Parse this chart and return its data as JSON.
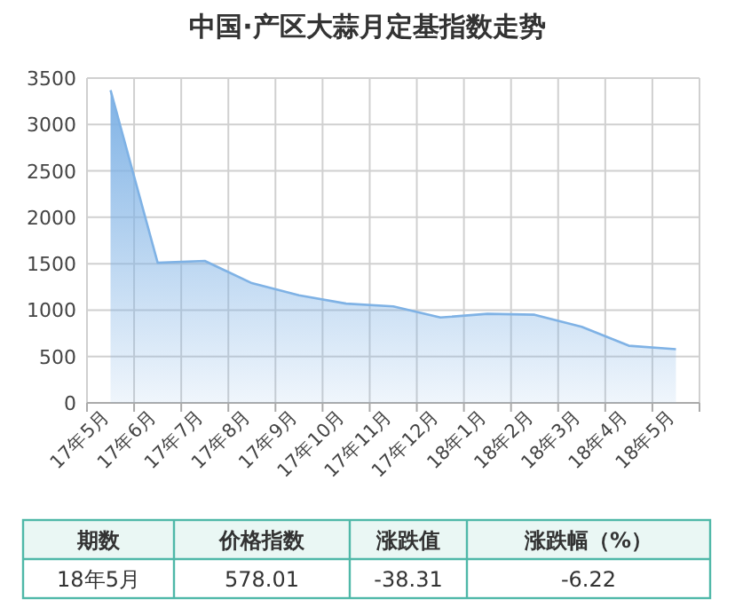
{
  "chart_data": {
    "type": "area",
    "title": "中国·产区大蒜月定基指数走势",
    "categories": [
      "17年5月",
      "17年6月",
      "17年7月",
      "17年8月",
      "17年9月",
      "17年10月",
      "17年11月",
      "17年12月",
      "18年1月",
      "18年2月",
      "18年3月",
      "18年4月",
      "18年5月"
    ],
    "series": [
      {
        "color": "#7fb2e5",
        "values": [
          3370,
          1510,
          1530,
          1290,
          1160,
          1070,
          1040,
          920,
          960,
          950,
          820,
          616,
          578.01
        ]
      }
    ],
    "ylim": [
      0,
      3500
    ],
    "yticks": [
      0,
      500,
      1000,
      1500,
      2000,
      2500,
      3000,
      3500
    ],
    "grid": true,
    "annotations": [
      "期数",
      "价格指数",
      "涨跌值",
      "涨跌幅（%）",
      "18年5月",
      "578.01",
      "-38.31",
      "-6.22"
    ]
  }
}
